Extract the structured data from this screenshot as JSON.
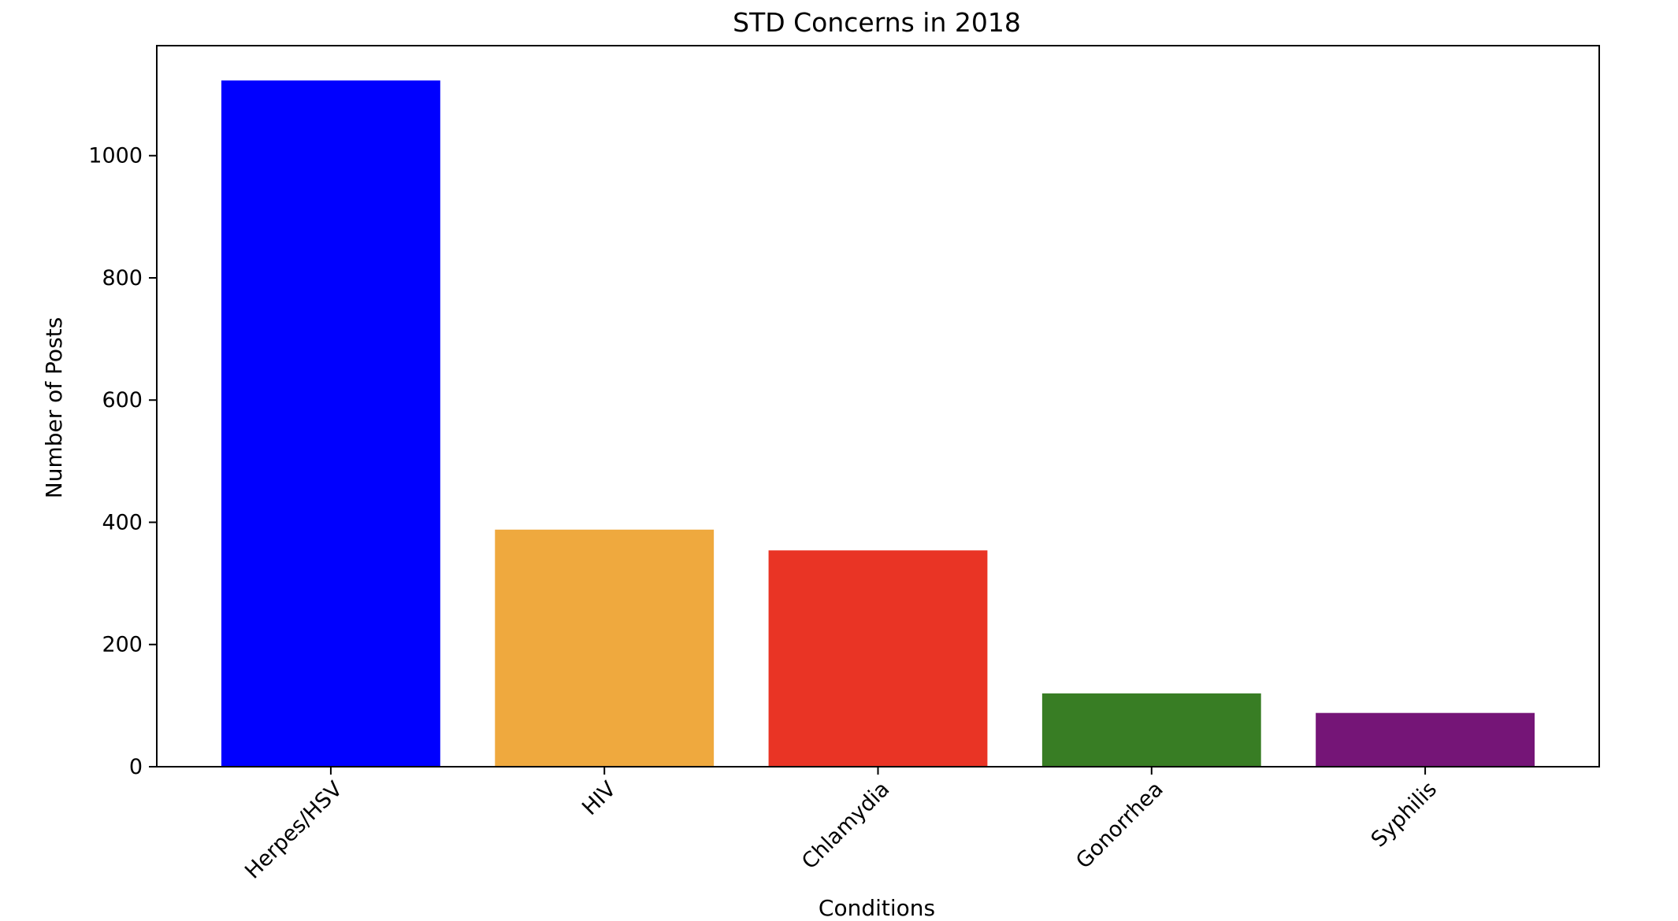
{
  "chart_data": {
    "type": "bar",
    "title": "STD Concerns in 2018",
    "xlabel": "Conditions",
    "ylabel": "Number of Posts",
    "categories": [
      "Herpes/HSV",
      "HIV",
      "Chlamydia",
      "Gonorrhea",
      "Syphilis"
    ],
    "values": [
      1123,
      388,
      354,
      120,
      88
    ],
    "colors": [
      "#0000ff",
      "#efa93e",
      "#e93425",
      "#387d24",
      "#751577"
    ],
    "ylim": [
      0,
      1180
    ],
    "yticks": [
      0,
      200,
      400,
      600,
      800,
      1000
    ],
    "x_tick_rotation_deg": 45,
    "grid": false,
    "legend": false
  }
}
